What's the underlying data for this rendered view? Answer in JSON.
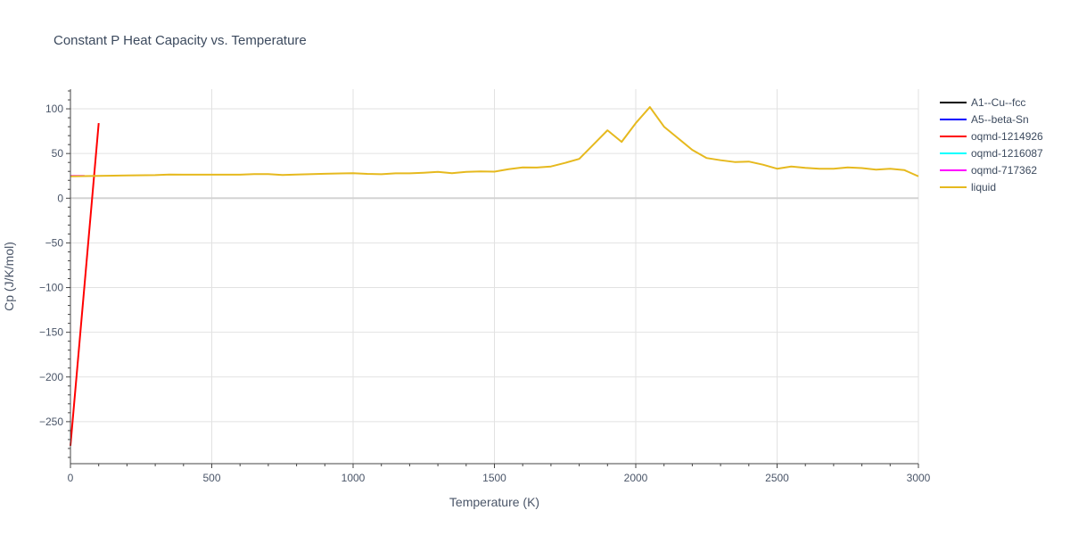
{
  "chart_data": {
    "type": "line",
    "title": "Constant P Heat Capacity vs. Temperature",
    "xlabel": "Temperature (K)",
    "ylabel": "Cp (J/K/mol)",
    "xlim": [
      0,
      3000
    ],
    "ylim": [
      -297,
      122
    ],
    "x_ticks": [
      0,
      500,
      1000,
      1500,
      2000,
      2500,
      3000
    ],
    "x_tick_labels": [
      "0",
      "500",
      "1000",
      "1500",
      "2000",
      "2500",
      "3000"
    ],
    "y_ticks": [
      100,
      50,
      0,
      -50,
      -100,
      -150,
      -200,
      -250
    ],
    "y_tick_labels": [
      "100",
      "50",
      "0",
      "−50",
      "−100",
      "−150",
      "−200",
      "−250"
    ],
    "grid": true,
    "legend_position": "right",
    "series": [
      {
        "name": "A1--Cu--fcc",
        "color": "#000000",
        "x": [],
        "y": []
      },
      {
        "name": "A5--beta-Sn",
        "color": "#0000ff",
        "x": [],
        "y": []
      },
      {
        "name": "oqmd-1214926",
        "color": "#ff0000",
        "x": [
          0,
          100
        ],
        "y": [
          -277,
          84
        ]
      },
      {
        "name": "oqmd-1216087",
        "color": "#00ffff",
        "x": [],
        "y": []
      },
      {
        "name": "oqmd-717362",
        "color": "#ff00ff",
        "x": [
          0,
          50
        ],
        "y": [
          25,
          25
        ]
      },
      {
        "name": "liquid",
        "color": "#e6b91e",
        "x": [
          0,
          100,
          200,
          300,
          350,
          400,
          500,
          600,
          650,
          700,
          750,
          800,
          900,
          1000,
          1050,
          1100,
          1150,
          1200,
          1250,
          1300,
          1350,
          1400,
          1450,
          1500,
          1550,
          1600,
          1650,
          1700,
          1750,
          1800,
          1850,
          1900,
          1950,
          2000,
          2050,
          2100,
          2150,
          2200,
          2250,
          2300,
          2350,
          2400,
          2450,
          2500,
          2550,
          2600,
          2650,
          2700,
          2750,
          2800,
          2850,
          2900,
          2950,
          3000
        ],
        "y": [
          24.5,
          25,
          25.5,
          25.8,
          26.5,
          26.4,
          26.4,
          26.3,
          27,
          27,
          26,
          26.5,
          27.3,
          28,
          27.2,
          26.8,
          27.8,
          27.8,
          28.5,
          29.5,
          28,
          29.5,
          30,
          29.7,
          32.5,
          34.5,
          34.3,
          35.5,
          39.5,
          44,
          60,
          76,
          63,
          84,
          102,
          80,
          67,
          54,
          45,
          42.5,
          40.5,
          41,
          37.5,
          33,
          35.5,
          34,
          33,
          33,
          34.5,
          33.7,
          32,
          33,
          31.5,
          24.5
        ]
      }
    ]
  }
}
